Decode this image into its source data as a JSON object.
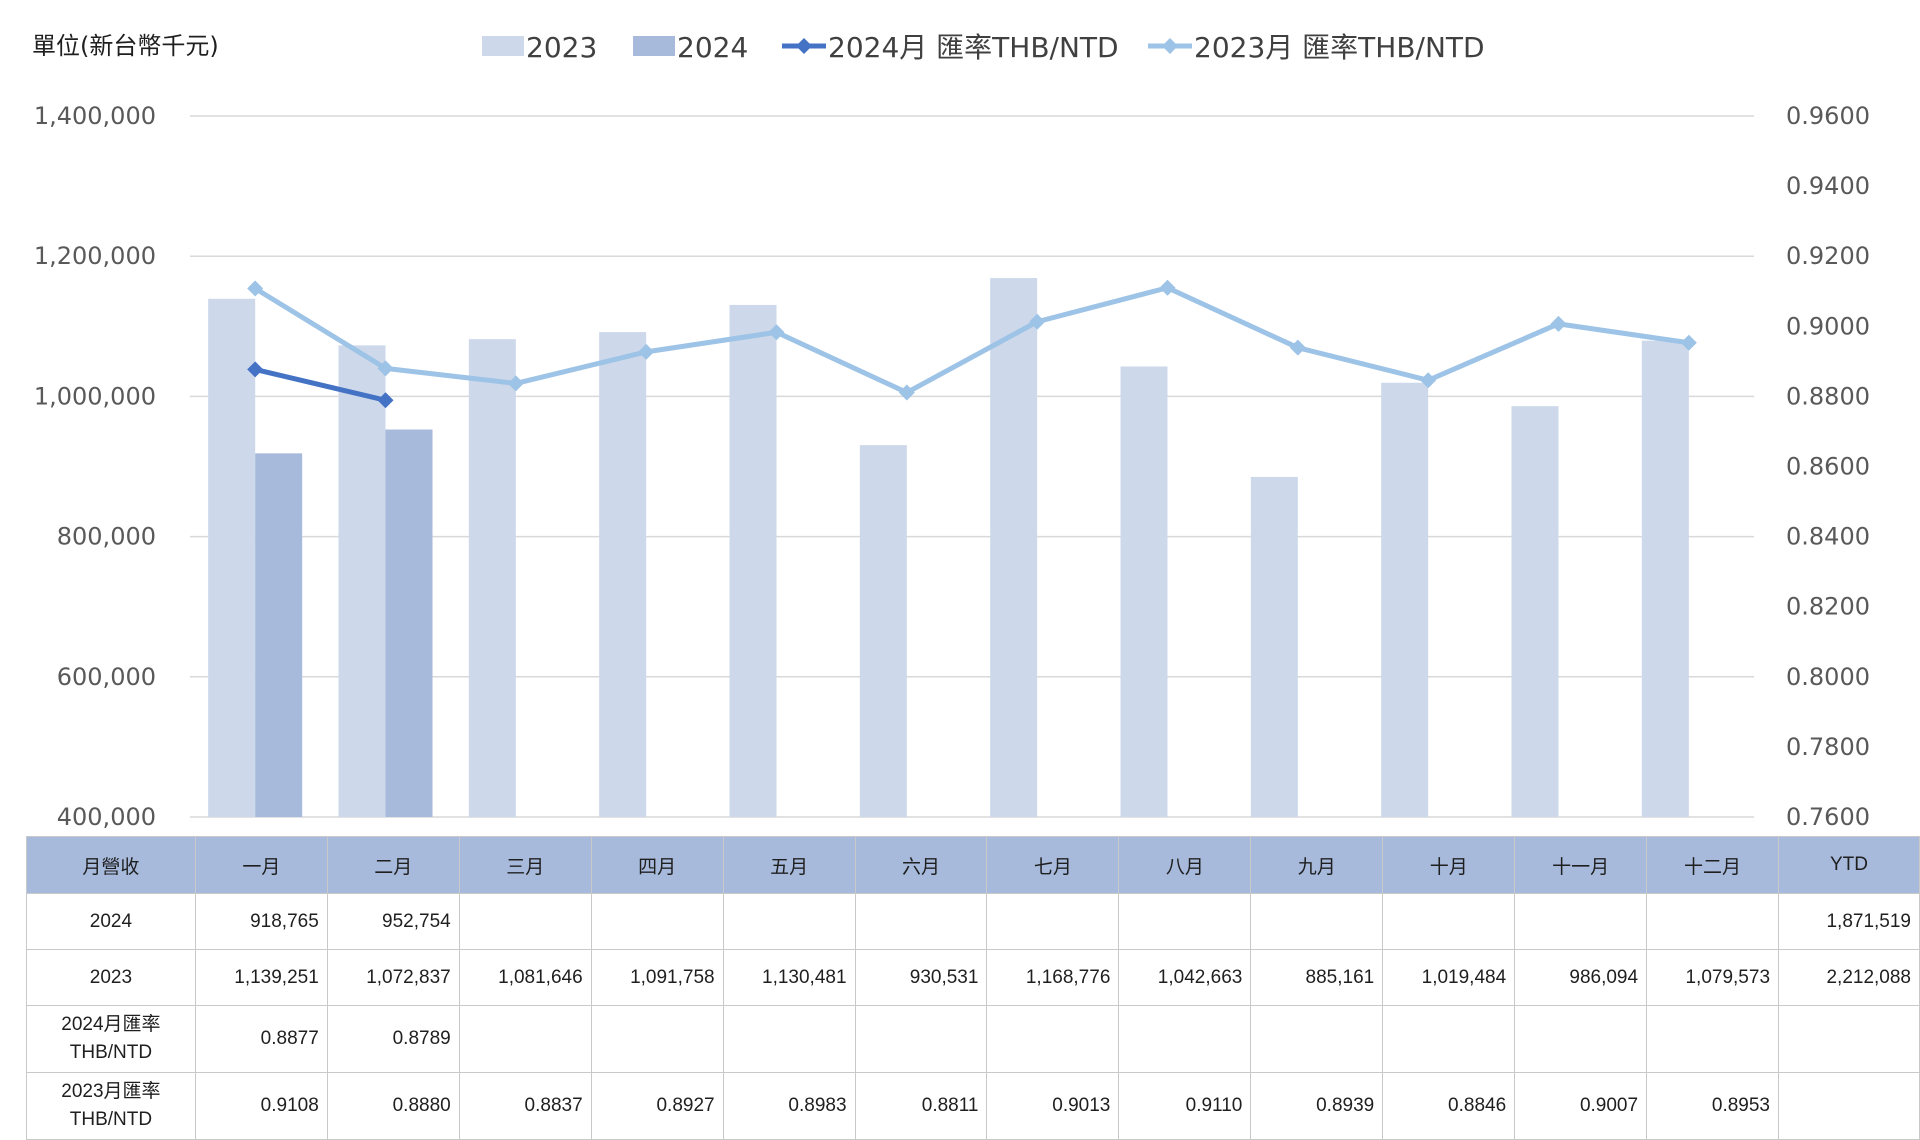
{
  "chart_data": {
    "type": "bar",
    "unit_label": "單位(新台幣千元)",
    "categories": [
      "一月",
      "二月",
      "三月",
      "四月",
      "五月",
      "六月",
      "七月",
      "八月",
      "九月",
      "十月",
      "十一月",
      "十二月"
    ],
    "series": [
      {
        "name": "2023",
        "kind": "bar",
        "axis": "left",
        "color": "#cdd8ea",
        "values": [
          1139251,
          1072837,
          1081646,
          1091758,
          1130481,
          930531,
          1168776,
          1042663,
          885161,
          1019484,
          986094,
          1079573
        ]
      },
      {
        "name": "2024",
        "kind": "bar",
        "axis": "left",
        "color": "#a7badc",
        "values": [
          918765,
          952754,
          null,
          null,
          null,
          null,
          null,
          null,
          null,
          null,
          null,
          null
        ]
      },
      {
        "name": "2024月 匯率THB/NTD",
        "kind": "line",
        "axis": "right",
        "color": "#4472c4",
        "values": [
          0.8877,
          0.8789,
          null,
          null,
          null,
          null,
          null,
          null,
          null,
          null,
          null,
          null
        ]
      },
      {
        "name": "2023月 匯率THB/NTD",
        "kind": "line",
        "axis": "right",
        "color": "#9dc3e6",
        "values": [
          0.9108,
          0.888,
          0.8837,
          0.8927,
          0.8983,
          0.8811,
          0.9013,
          0.911,
          0.8939,
          0.8846,
          0.9007,
          0.8953
        ]
      }
    ],
    "ylim_left": [
      400000,
      1400000
    ],
    "yticks_left": [
      "400,000",
      "600,000",
      "800,000",
      "1,000,000",
      "1,200,000",
      "1,400,000"
    ],
    "ylim_right": [
      0.76,
      0.96
    ],
    "yticks_right": [
      "0.7600",
      "0.7800",
      "0.8000",
      "0.8200",
      "0.8400",
      "0.8600",
      "0.8800",
      "0.9000",
      "0.9200",
      "0.9400",
      "0.9600"
    ],
    "grid": true,
    "legend": "top"
  },
  "table": {
    "header": [
      "月營收",
      "一月",
      "二月",
      "三月",
      "四月",
      "五月",
      "六月",
      "七月",
      "八月",
      "九月",
      "十月",
      "十一月",
      "十二月",
      "YTD"
    ],
    "rows": [
      {
        "label": "2024",
        "cells": [
          "918,765",
          "952,754",
          "",
          "",
          "",
          "",
          "",
          "",
          "",
          "",
          "",
          "",
          "1,871,519"
        ]
      },
      {
        "label": "2023",
        "cells": [
          "1,139,251",
          "1,072,837",
          "1,081,646",
          "1,091,758",
          "1,130,481",
          "930,531",
          "1,168,776",
          "1,042,663",
          "885,161",
          "1,019,484",
          "986,094",
          "1,079,573",
          "2,212,088"
        ]
      },
      {
        "label_line1": "2024月匯率",
        "label_line2": "THB/NTD",
        "cells": [
          "0.8877",
          "0.8789",
          "",
          "",
          "",
          "",
          "",
          "",
          "",
          "",
          "",
          "",
          ""
        ]
      },
      {
        "label_line1": "2023月匯率",
        "label_line2": "THB/NTD",
        "cells": [
          "0.9108",
          "0.8880",
          "0.8837",
          "0.8927",
          "0.8983",
          "0.8811",
          "0.9013",
          "0.9110",
          "0.8939",
          "0.8846",
          "0.9007",
          "0.8953",
          ""
        ]
      }
    ]
  }
}
